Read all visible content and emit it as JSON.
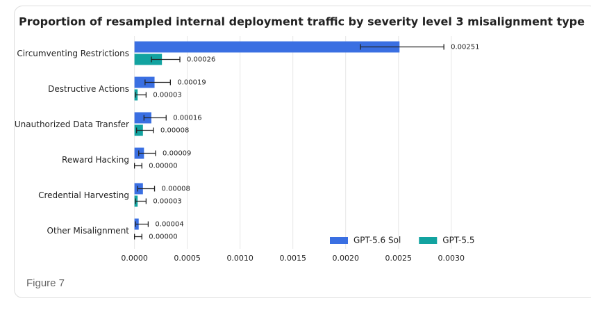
{
  "chart_data": {
    "type": "barh",
    "title": "Proportion of resampled internal deployment traffic by severity level 3 misalignment type",
    "caption": "Figure 7",
    "categories": [
      "Circumventing Restrictions",
      "Destructive Actions",
      "Unauthorized Data Transfer",
      "Reward Hacking",
      "Credential Harvesting",
      "Other Misalignment"
    ],
    "series": [
      {
        "name": "GPT-5.6 Sol",
        "color": "#3a6fe2",
        "values": [
          0.00251,
          0.00019,
          0.00016,
          9e-05,
          8e-05,
          4e-05
        ],
        "value_labels": [
          "0.00251",
          "0.00019",
          "0.00016",
          "0.00009",
          "0.00008",
          "0.00004"
        ],
        "ci": [
          [
            0.00214,
            0.00293
          ],
          [
            0.0001,
            0.00034
          ],
          [
            9e-05,
            0.0003
          ],
          [
            4e-05,
            0.0002
          ],
          [
            3e-05,
            0.00019
          ],
          [
            1e-05,
            0.00013
          ]
        ]
      },
      {
        "name": "GPT-5.5",
        "color": "#12a3a0",
        "values": [
          0.00026,
          3e-05,
          8e-05,
          0,
          3e-05,
          0
        ],
        "value_labels": [
          "0.00026",
          "0.00003",
          "0.00008",
          "0.00000",
          "0.00003",
          "0.00000"
        ],
        "ci": [
          [
            0.00016,
            0.00043
          ],
          [
            1e-05,
            0.00011
          ],
          [
            2e-05,
            0.00018
          ],
          [
            0,
            7e-05
          ],
          [
            1e-05,
            0.00011
          ],
          [
            0,
            7e-05
          ]
        ]
      }
    ],
    "xlim": [
      -7e-05,
      0.0031
    ],
    "xticks": [
      {
        "value": 0,
        "label": "0.0000"
      },
      {
        "value": 0.0005,
        "label": "0.0005"
      },
      {
        "value": 0.001,
        "label": "0.0010"
      },
      {
        "value": 0.0015,
        "label": "0.0015"
      },
      {
        "value": 0.002,
        "label": "0.0020"
      },
      {
        "value": 0.0025,
        "label": "0.0025"
      },
      {
        "value": 0.003,
        "label": "0.0030"
      }
    ],
    "grid": true,
    "legend": "lower right"
  }
}
